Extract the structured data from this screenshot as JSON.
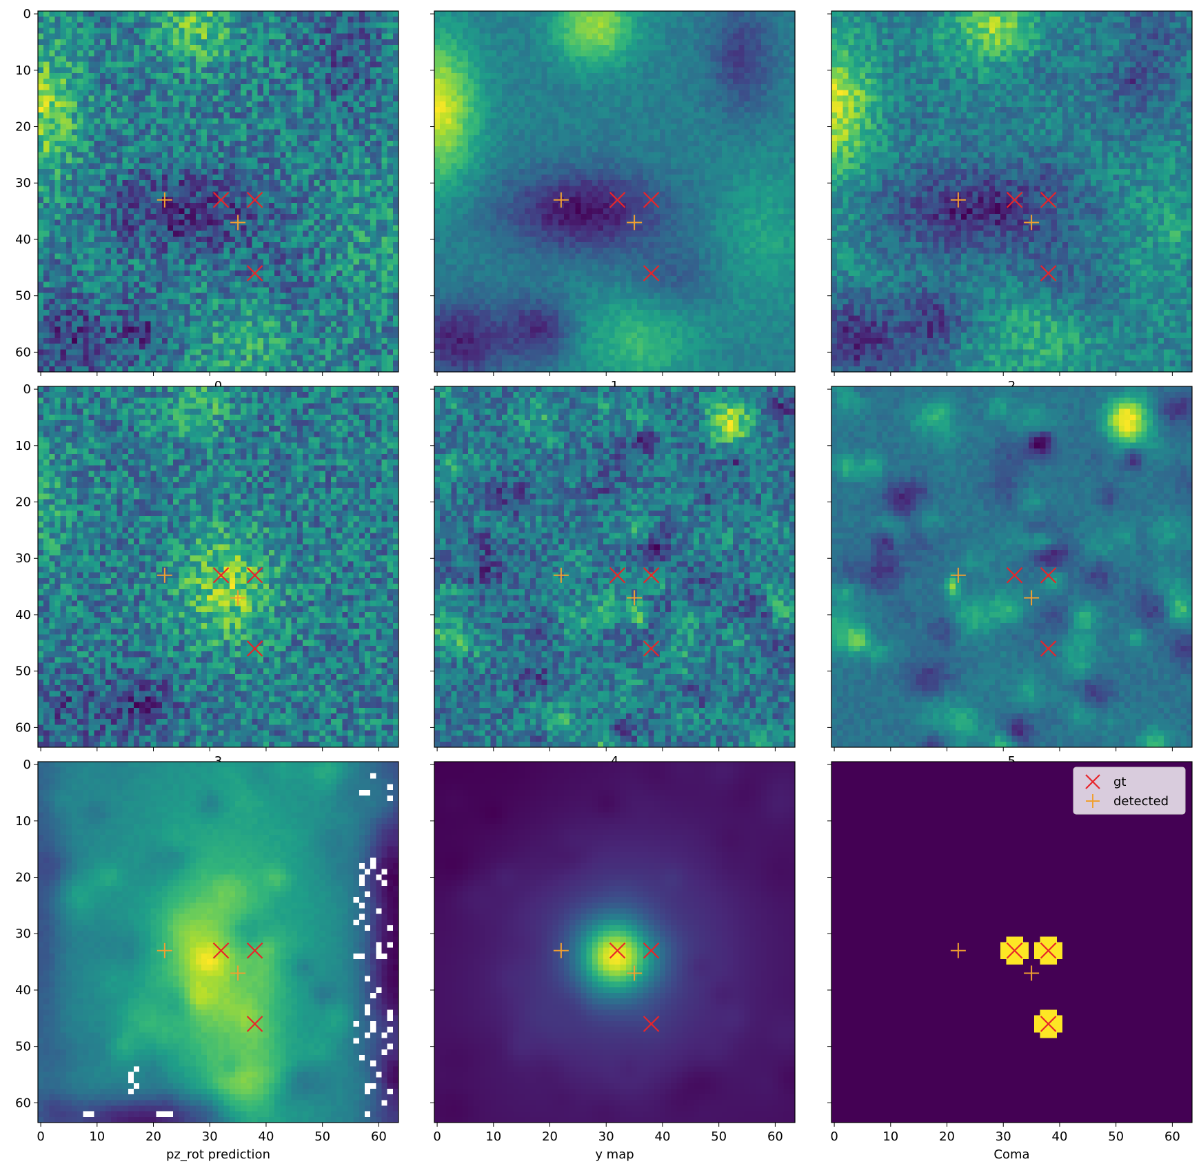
{
  "chart_data": {
    "type": "heatmap",
    "grid": {
      "rows": 3,
      "cols": 3,
      "sharex": true,
      "sharey": true
    },
    "image_size": [
      64,
      64
    ],
    "axis_ticks": [
      0,
      10,
      20,
      30,
      40,
      50,
      60
    ],
    "colormap": "viridis",
    "marker_colors": {
      "gt": "#e8252a",
      "detected": "#f0a030"
    },
    "markers": {
      "gt": [
        {
          "x": 32,
          "y": 33
        },
        {
          "x": 38,
          "y": 33
        },
        {
          "x": 38,
          "y": 46
        }
      ],
      "detected": [
        {
          "x": 22,
          "y": 33
        },
        {
          "x": 35,
          "y": 37
        }
      ]
    },
    "legend": {
      "entries": [
        "gt",
        "detected"
      ],
      "location": "upper right",
      "panel": 8
    },
    "panels": [
      {
        "label": "0",
        "style": "noise_lowfreq"
      },
      {
        "label": "1",
        "style": "smooth_lowfreq"
      },
      {
        "label": "2",
        "style": "mid_lowfreq"
      },
      {
        "label": "3",
        "style": "noise_blob"
      },
      {
        "label": "4",
        "style": "highfreq_noise"
      },
      {
        "label": "5",
        "style": "highfreq_smooth"
      },
      {
        "label": "pz_rot prediction",
        "style": "prediction"
      },
      {
        "label": "y map",
        "style": "ymap"
      },
      {
        "label": "Coma",
        "style": "mask"
      }
    ]
  }
}
